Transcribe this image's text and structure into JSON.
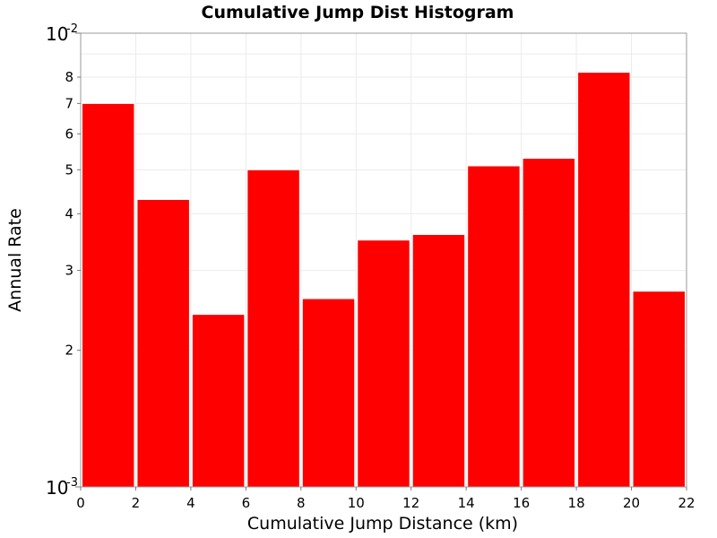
{
  "chart_data": {
    "type": "bar",
    "title": "Cumulative Jump Dist Histogram",
    "xlabel": "Cumulative Jump Distance (km)",
    "ylabel": "Annual Rate",
    "xlim": [
      0,
      22
    ],
    "ylim": [
      0.001,
      0.01
    ],
    "yscale": "log",
    "grid": true,
    "legend": "none",
    "bar_color": "#ff0000",
    "bar_edge_color": "#ffffff",
    "x_ticks": [
      {
        "value": 0,
        "label": "0"
      },
      {
        "value": 2,
        "label": "2"
      },
      {
        "value": 4,
        "label": "4"
      },
      {
        "value": 6,
        "label": "6"
      },
      {
        "value": 8,
        "label": "8"
      },
      {
        "value": 10,
        "label": "10"
      },
      {
        "value": 12,
        "label": "12"
      },
      {
        "value": 14,
        "label": "14"
      },
      {
        "value": 16,
        "label": "16"
      },
      {
        "value": 18,
        "label": "18"
      },
      {
        "value": 20,
        "label": "20"
      },
      {
        "value": 22,
        "label": "22"
      }
    ],
    "y_major_ticks": [
      {
        "value": 0.001,
        "base": "10",
        "exponent": "-3"
      },
      {
        "value": 0.01,
        "base": "10",
        "exponent": "-2"
      }
    ],
    "y_minor_ticks": [
      {
        "value": 0.002,
        "label": "2"
      },
      {
        "value": 0.003,
        "label": "3"
      },
      {
        "value": 0.004,
        "label": "4"
      },
      {
        "value": 0.005,
        "label": "5"
      },
      {
        "value": 0.006,
        "label": "6"
      },
      {
        "value": 0.007,
        "label": "7"
      },
      {
        "value": 0.008,
        "label": "8"
      }
    ],
    "series": [
      {
        "bins": [
          {
            "x_start": 0,
            "x_end": 2,
            "value": 0.007
          },
          {
            "x_start": 2,
            "x_end": 4,
            "value": 0.0043
          },
          {
            "x_start": 4,
            "x_end": 6,
            "value": 0.0024
          },
          {
            "x_start": 6,
            "x_end": 8,
            "value": 0.005
          },
          {
            "x_start": 8,
            "x_end": 10,
            "value": 0.0026
          },
          {
            "x_start": 10,
            "x_end": 12,
            "value": 0.0035
          },
          {
            "x_start": 12,
            "x_end": 14,
            "value": 0.0036
          },
          {
            "x_start": 14,
            "x_end": 16,
            "value": 0.0051
          },
          {
            "x_start": 16,
            "x_end": 18,
            "value": 0.0053
          },
          {
            "x_start": 18,
            "x_end": 20,
            "value": 0.0082
          },
          {
            "x_start": 20,
            "x_end": 22,
            "value": 0.0027
          }
        ]
      }
    ]
  }
}
